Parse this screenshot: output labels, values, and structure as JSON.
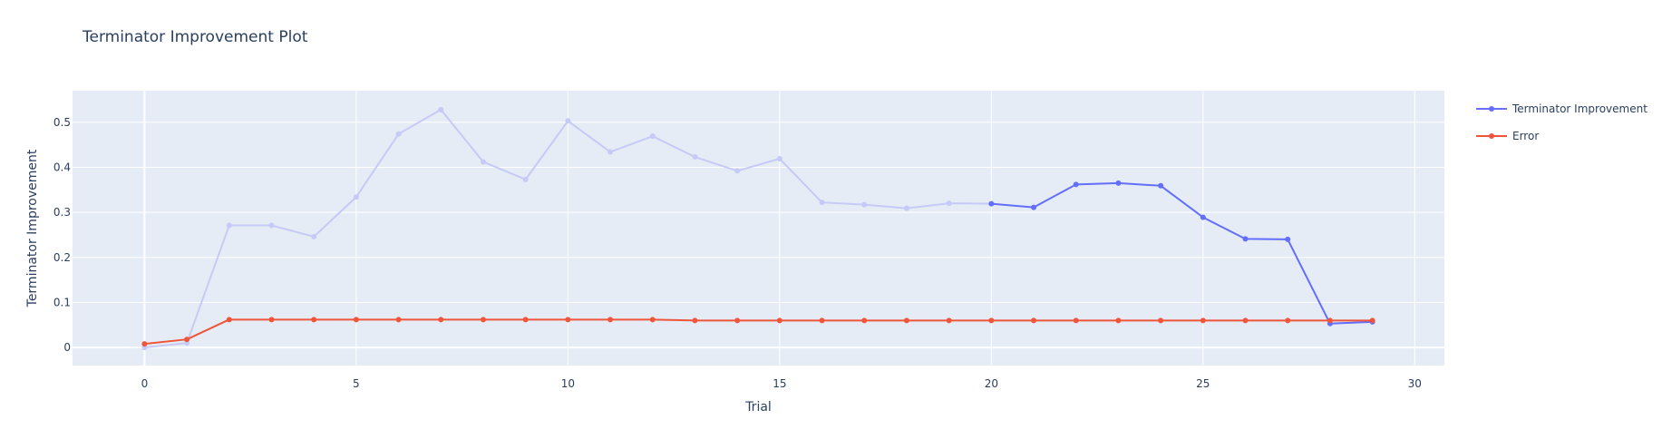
{
  "chart_data": {
    "type": "line",
    "title": "Terminator Improvement Plot",
    "xlabel": "Trial",
    "ylabel": "Terminator Improvement",
    "xlim": [
      -1.7,
      30.7
    ],
    "ylim": [
      -0.04,
      0.57
    ],
    "xticks": [
      0,
      5,
      10,
      15,
      20,
      25,
      30
    ],
    "yticks": [
      0,
      0.1,
      0.2,
      0.3,
      0.4,
      0.5
    ],
    "ytick_labels": [
      "0",
      "0.1",
      "0.2",
      "0.3",
      "0.4",
      "0.5"
    ],
    "grid": true,
    "legend_position": "top-right-outside",
    "colors": {
      "improvement": "#636efa",
      "improvement_faded": "#c6caf6",
      "error": "#ef553b",
      "plot_bg": "#e5ecf6",
      "grid": "#ffffff"
    },
    "series": [
      {
        "name": "Terminator Improvement",
        "x": [
          0,
          1,
          2,
          3,
          4,
          5,
          6,
          7,
          8,
          9,
          10,
          11,
          12,
          13,
          14,
          15,
          16,
          17,
          18,
          19,
          20,
          21,
          22,
          23,
          24,
          25,
          26,
          27,
          28,
          29
        ],
        "values": [
          0.0,
          0.01,
          0.271,
          0.271,
          0.246,
          0.334,
          0.474,
          0.528,
          0.412,
          0.373,
          0.503,
          0.434,
          0.469,
          0.423,
          0.392,
          0.419,
          0.322,
          0.317,
          0.309,
          0.32,
          0.319,
          0.311,
          0.362,
          0.365,
          0.359,
          0.289,
          0.241,
          0.24,
          0.053,
          0.057
        ],
        "highlight_from_x": 20
      },
      {
        "name": "Error",
        "x": [
          0,
          1,
          2,
          3,
          4,
          5,
          6,
          7,
          8,
          9,
          10,
          11,
          12,
          13,
          14,
          15,
          16,
          17,
          18,
          19,
          20,
          21,
          22,
          23,
          24,
          25,
          26,
          27,
          28,
          29
        ],
        "values": [
          0.008,
          0.018,
          0.062,
          0.062,
          0.062,
          0.062,
          0.062,
          0.062,
          0.062,
          0.062,
          0.062,
          0.062,
          0.062,
          0.06,
          0.06,
          0.06,
          0.06,
          0.06,
          0.06,
          0.06,
          0.06,
          0.06,
          0.06,
          0.06,
          0.06,
          0.06,
          0.06,
          0.06,
          0.06,
          0.06
        ]
      }
    ]
  }
}
